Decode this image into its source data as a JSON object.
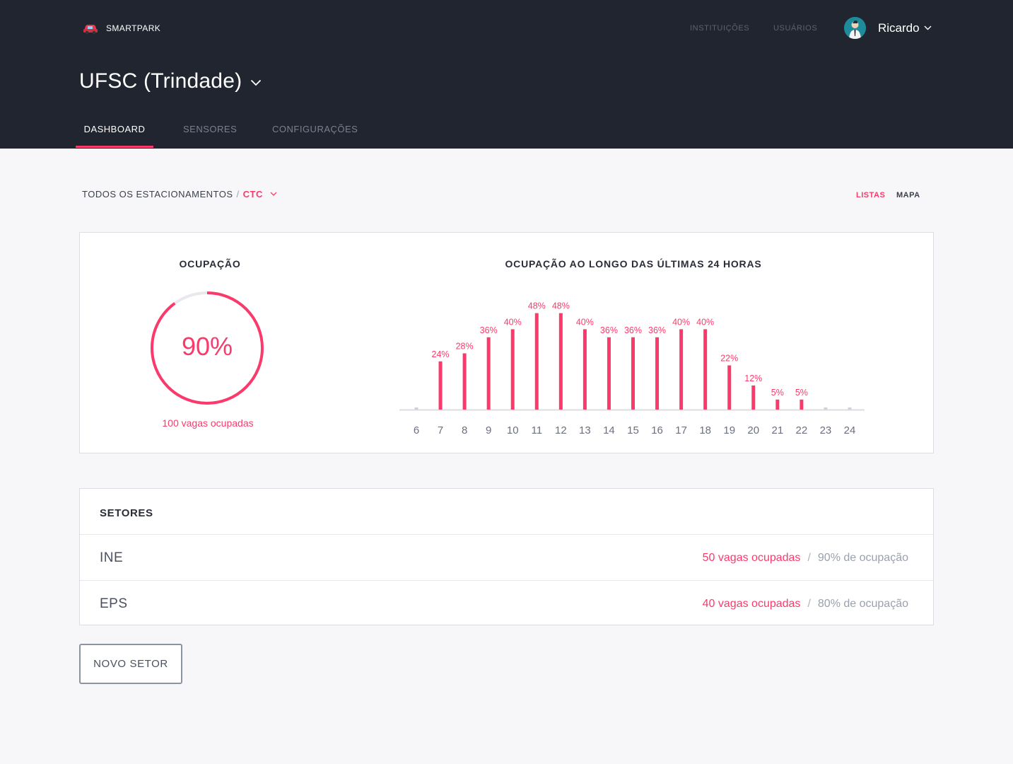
{
  "app": {
    "name": "SMARTPARK"
  },
  "topnav": {
    "instituicoes": "INSTITUIÇÕES",
    "usuarios": "USUÁRIOS"
  },
  "user": {
    "name": "Ricardo"
  },
  "institution": {
    "title": "UFSC (Trindade)"
  },
  "tabs": [
    {
      "label": "DASHBOARD",
      "active": true
    },
    {
      "label": "SENSORES",
      "active": false
    },
    {
      "label": "CONFIGURAÇÕES",
      "active": false
    }
  ],
  "breadcrumb": {
    "all": "TODOS OS ESTACIONAMENTOS",
    "separator": "/",
    "current": "CTC"
  },
  "views": {
    "listas": "LISTAS",
    "mapa": "MAPA",
    "active": "LISTAS"
  },
  "occupancy": {
    "title": "OCUPAÇÃO",
    "percent": 90,
    "percent_label": "90%",
    "occupied_label": "100 vagas ocupadas"
  },
  "chart_data": {
    "type": "bar",
    "title": "OCUPAÇÃO AO LONGO DAS ÚLTIMAS 24 HORAS",
    "categories": [
      "6",
      "7",
      "8",
      "9",
      "10",
      "11",
      "12",
      "13",
      "14",
      "15",
      "16",
      "17",
      "18",
      "19",
      "20",
      "21",
      "22",
      "23",
      "24"
    ],
    "values": [
      0,
      24,
      28,
      36,
      40,
      48,
      48,
      40,
      36,
      36,
      36,
      40,
      40,
      22,
      12,
      5,
      5,
      0,
      0
    ],
    "data_labels": [
      "",
      "24%",
      "28%",
      "36%",
      "40%",
      "48%",
      "48%",
      "40%",
      "36%",
      "36%",
      "36%",
      "40%",
      "40%",
      "22%",
      "12%",
      "5%",
      "5%",
      "",
      ""
    ],
    "ylim": [
      0,
      50
    ],
    "grid": false,
    "colors": {
      "bar": "#fb3a6b",
      "empty": "#cfd1d8",
      "baseline": "#dcdde2"
    }
  },
  "sectors": {
    "title": "SETORES",
    "rows": [
      {
        "name": "INE",
        "vagas": "50 vagas ocupadas",
        "separator": "/",
        "ocupacao": "90% de ocupação"
      },
      {
        "name": "EPS",
        "vagas": "40 vagas ocupadas",
        "separator": "/",
        "ocupacao": "80% de ocupação"
      }
    ]
  },
  "actions": {
    "new_sector": "NOVO SETOR"
  },
  "colors": {
    "accent": "#fb3a6b",
    "header_bg": "#21252f",
    "page_bg": "#f7f7f9"
  }
}
